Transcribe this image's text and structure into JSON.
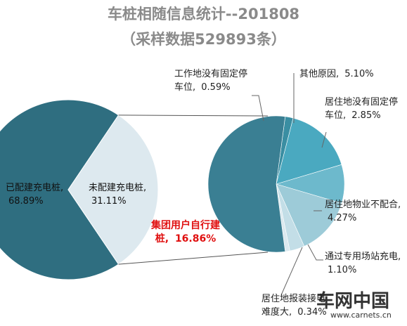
{
  "chart_data": [
    {
      "type": "pie",
      "title": "车桩相随信息统计--201808",
      "subtitle": "（采样数据529893条）",
      "categories": [
        "已配建充电桩,",
        "未配建充电桩,"
      ],
      "values": [
        68.89,
        31.11
      ],
      "value_labels": [
        "68.89%",
        "31.11%"
      ],
      "colors": [
        "#2f6e80",
        "#dde9ef"
      ]
    },
    {
      "type": "pie",
      "categories": [
        "工作地没有固定停车位,",
        "其他原因,",
        "居住地没有固定停车位,",
        "居住地物业不配合,",
        "通过专用场站充电,",
        "居住地报装接电难度大,",
        "集团用户自行建桩,"
      ],
      "values": [
        0.59,
        5.1,
        2.85,
        4.27,
        1.1,
        0.34,
        16.86
      ],
      "value_labels": [
        "0.59%",
        "5.10%",
        "2.85%",
        "4.27%",
        "1.10%",
        "0.34%",
        "16.86%"
      ],
      "colors": [
        "#3a8ea2",
        "#4aa9c0",
        "#6db9cc",
        "#9dcbd8",
        "#c3dee7",
        "#dbe9ef",
        "#3a7f93"
      ]
    }
  ],
  "watermark": {
    "brand": "车网中国",
    "url": "www.carnets.cn"
  }
}
